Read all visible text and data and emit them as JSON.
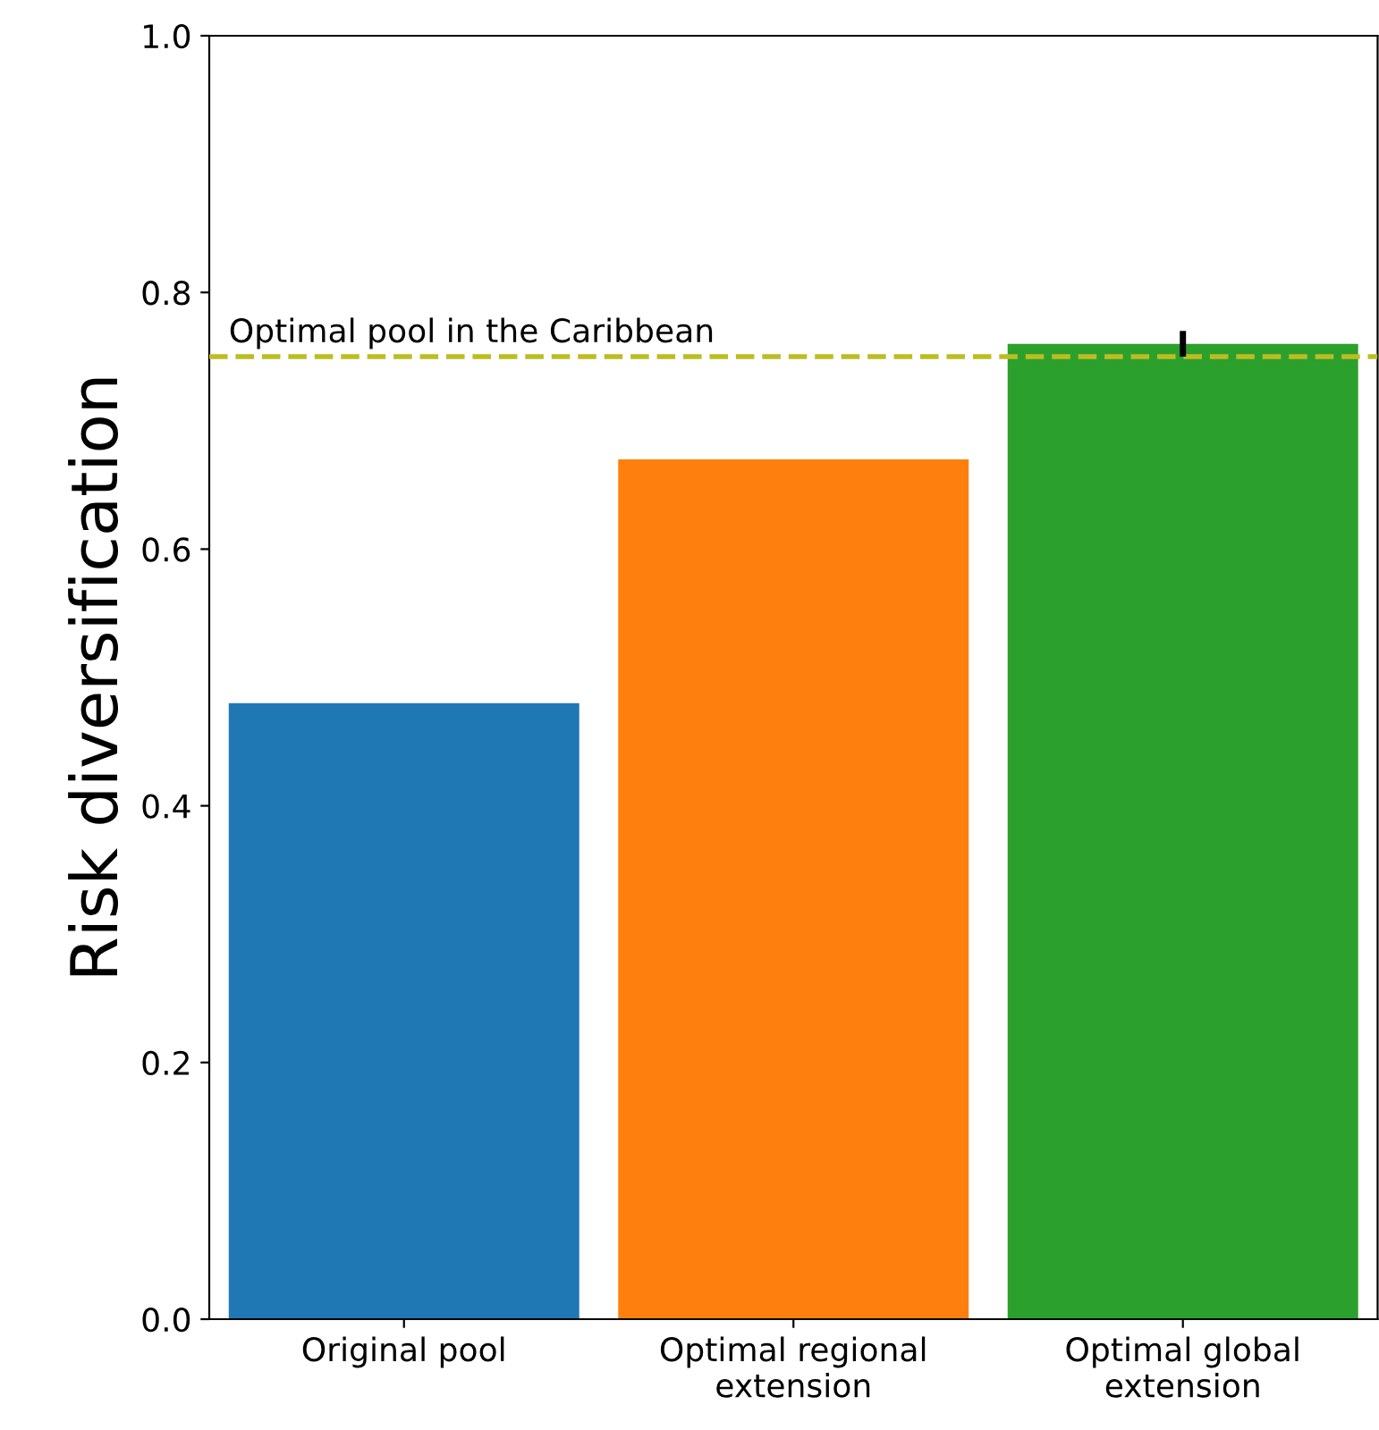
{
  "chart_data": {
    "type": "bar",
    "ylabel": "Risk diversification",
    "categories": [
      "Original pool",
      "Optimal regional\nextension",
      "Optimal global\nextension"
    ],
    "values": [
      0.48,
      0.67,
      0.76
    ],
    "colors": [
      "#1f77b4",
      "#ff7f0e",
      "#2ca02c"
    ],
    "errors": [
      null,
      null,
      0.01
    ],
    "ylim": [
      0.0,
      1.0
    ],
    "yticks": [
      {
        "value": 0.0,
        "label": "0.0"
      },
      {
        "value": 0.2,
        "label": "0.2"
      },
      {
        "value": 0.4,
        "label": "0.4"
      },
      {
        "value": 0.6,
        "label": "0.6"
      },
      {
        "value": 0.8,
        "label": "0.8"
      },
      {
        "value": 1.0,
        "label": "1.0"
      }
    ],
    "ref_lines": [
      {
        "axis": "y",
        "value": 0.75,
        "label": "Optimal pool in the Caribbean",
        "color": "#bcbd22",
        "line_style": "dashed"
      }
    ],
    "grid": false,
    "legend": false
  }
}
